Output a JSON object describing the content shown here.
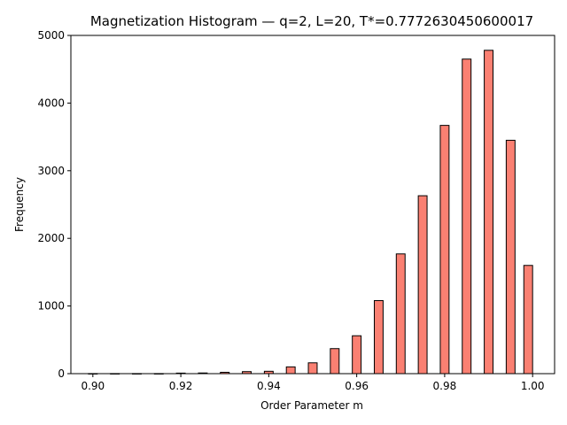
{
  "chart_data": {
    "type": "bar",
    "title": "Magnetization Histogram — q=2, L=20, T*=0.7772630450600017",
    "xlabel": "Order Parameter m",
    "ylabel": "Frequency",
    "xlim": [
      0.895,
      1.005
    ],
    "ylim": [
      0,
      5000
    ],
    "xticks": [
      "0.90",
      "0.92",
      "0.94",
      "0.96",
      "0.98",
      "1.00"
    ],
    "xtick_values": [
      0.9,
      0.92,
      0.94,
      0.96,
      0.98,
      1.0
    ],
    "yticks": [
      "0",
      "1000",
      "2000",
      "3000",
      "4000",
      "5000"
    ],
    "ytick_values": [
      0,
      1000,
      2000,
      3000,
      4000,
      5000
    ],
    "bar_width": 0.002,
    "x": [
      0.9,
      0.905,
      0.91,
      0.915,
      0.92,
      0.925,
      0.93,
      0.935,
      0.94,
      0.945,
      0.95,
      0.955,
      0.96,
      0.965,
      0.97,
      0.975,
      0.98,
      0.985,
      0.99,
      0.995,
      0.999
    ],
    "values": [
      1,
      1,
      1,
      1,
      8,
      10,
      20,
      30,
      35,
      100,
      160,
      370,
      560,
      1080,
      1770,
      2630,
      3670,
      4650,
      4780,
      3450,
      1600
    ],
    "bar_color": "#fa8072",
    "edge_color": "#000000",
    "grid": false,
    "legend": "none"
  }
}
